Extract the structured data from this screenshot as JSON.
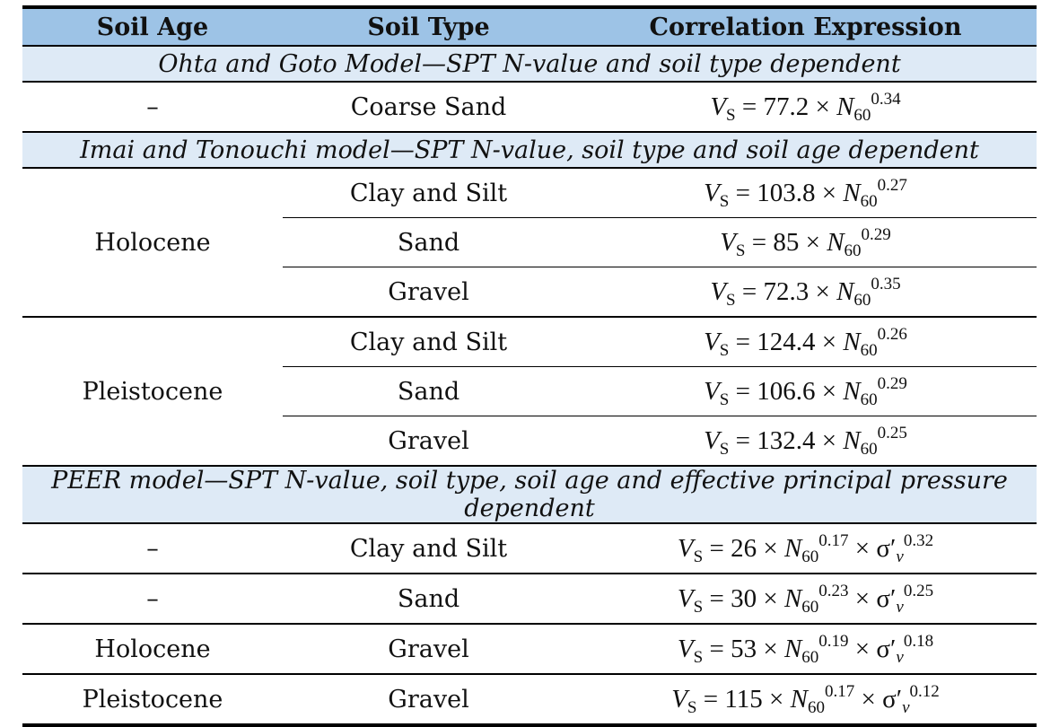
{
  "headers": {
    "age": "Soil Age",
    "type": "Soil Type",
    "expr": "Correlation Expression"
  },
  "sections": [
    "Ohta and Goto Model—SPT N-value and soil type dependent",
    "Imai and Tonouchi model—SPT N-value, soil type and soil age dependent",
    "PEER model—SPT N-value, soil type, soil age and effective principal pressure dependent"
  ],
  "rows": [
    {
      "age": "–",
      "type": "Coarse Sand",
      "coef": "77.2",
      "n_exp": "0.34"
    },
    {
      "age": "Holocene",
      "type": "Clay and Silt",
      "coef": "103.8",
      "n_exp": "0.27"
    },
    {
      "type": "Sand",
      "coef": "85",
      "n_exp": "0.29"
    },
    {
      "type": "Gravel",
      "coef": "72.3",
      "n_exp": "0.35"
    },
    {
      "age": "Pleistocene",
      "type": "Clay and Silt",
      "coef": "124.4",
      "n_exp": "0.26"
    },
    {
      "type": "Sand",
      "coef": "106.6",
      "n_exp": "0.29"
    },
    {
      "type": "Gravel",
      "coef": "132.4",
      "n_exp": "0.25"
    },
    {
      "age": "–",
      "type": "Clay and Silt",
      "coef": "26",
      "n_exp": "0.17",
      "s_exp": "0.32"
    },
    {
      "age": "–",
      "type": "Sand",
      "coef": "30",
      "n_exp": "0.23",
      "s_exp": "0.25"
    },
    {
      "age": "Holocene",
      "type": "Gravel",
      "coef": "53",
      "n_exp": "0.19",
      "s_exp": "0.18"
    },
    {
      "age": "Pleistocene",
      "type": "Gravel",
      "coef": "115",
      "n_exp": "0.17",
      "s_exp": "0.12"
    }
  ],
  "symbols": {
    "v": "V",
    "s": "S",
    "eq": " = ",
    "times": " × ",
    "n": "N",
    "n_sub": "60",
    "sigma": "σ′",
    "sigma_sub": "v"
  }
}
